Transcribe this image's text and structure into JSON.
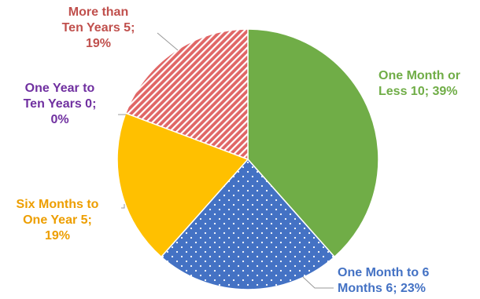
{
  "chart_data": {
    "type": "pie",
    "title": "",
    "slices": [
      {
        "category": "One Month or Less",
        "value": 10,
        "percent": "39%",
        "color": "#70AD47",
        "pattern": "solid",
        "label_lines": [
          "One Month or",
          "Less   10; 39%"
        ]
      },
      {
        "category": "One Month to 6 Months",
        "value": 6,
        "percent": "23%",
        "color": "#4472C4",
        "pattern": "dots",
        "label_lines": [
          "One Month to 6",
          "Months   6; 23%"
        ]
      },
      {
        "category": "Six Months to One Year",
        "value": 5,
        "percent": "19%",
        "color": "#FFC000",
        "pattern": "solid",
        "label_lines": [
          "Six Months to",
          "One Year   5;",
          "19%"
        ]
      },
      {
        "category": "One Year to Ten Years",
        "value": 0,
        "percent": "0%",
        "color": "#7030A0",
        "pattern": "solid",
        "label_lines": [
          "One Year to",
          "Ten Years   0;",
          "0%"
        ]
      },
      {
        "category": "More than Ten Years",
        "value": 5,
        "percent": "19%",
        "color": "#E06666",
        "pattern": "diagonal-stripes",
        "label_lines": [
          "More than",
          "Ten Years   5;",
          "19%"
        ]
      }
    ],
    "label_colors": {
      "One Month or Less": "#70AD47",
      "One Month to 6 Months": "#4472C4",
      "Six Months to One Year": "#ED9E00",
      "One Year to Ten Years": "#7030A0",
      "More than Ten Years": "#C0504D"
    },
    "legend": "none"
  }
}
